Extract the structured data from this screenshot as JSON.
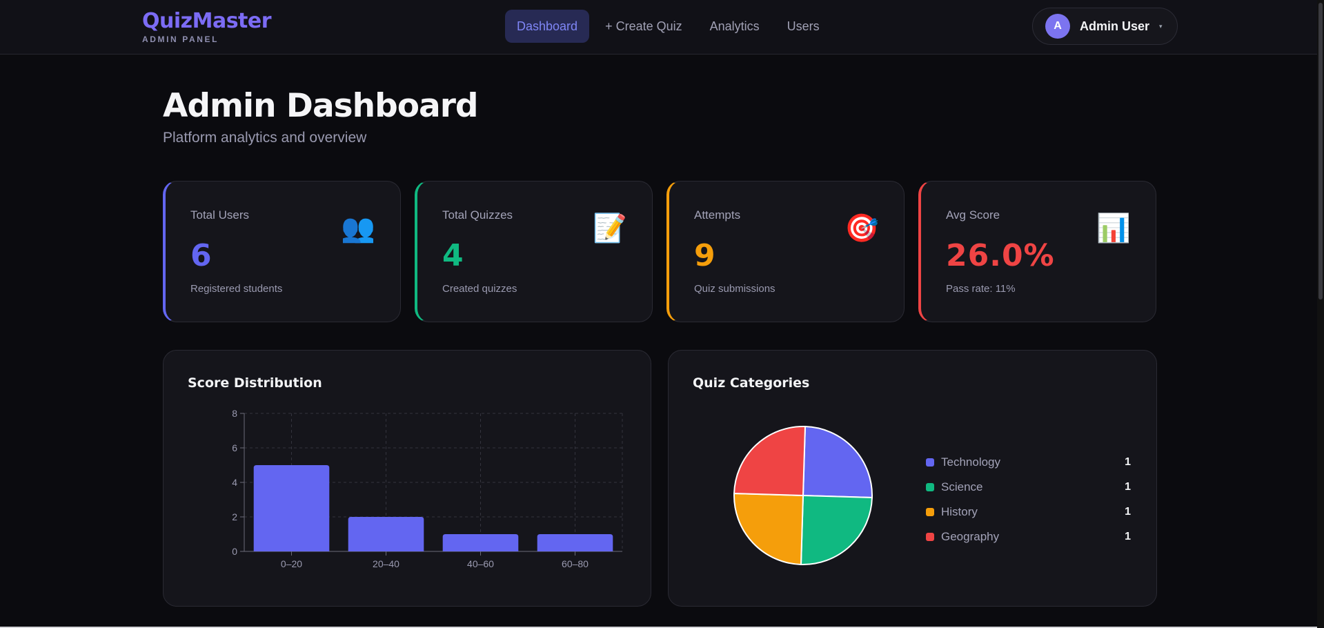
{
  "header": {
    "brand": "QuizMaster",
    "brand_sub": "ADMIN PANEL",
    "nav": [
      {
        "label": "Dashboard",
        "active": true
      },
      {
        "label": "+ Create Quiz",
        "active": false
      },
      {
        "label": "Analytics",
        "active": false
      },
      {
        "label": "Users",
        "active": false
      }
    ],
    "user": {
      "initial": "A",
      "name": "Admin User",
      "caret": "▾"
    }
  },
  "page": {
    "title": "Admin Dashboard",
    "subtitle": "Platform analytics and overview"
  },
  "stats": [
    {
      "label": "Total Users",
      "value": "6",
      "note": "Registered students",
      "icon": "users-icon",
      "glyph": "👥",
      "color": "#6366f1"
    },
    {
      "label": "Total Quizzes",
      "value": "4",
      "note": "Created quizzes",
      "icon": "memo-icon",
      "glyph": "📝",
      "color": "#10b981"
    },
    {
      "label": "Attempts",
      "value": "9",
      "note": "Quiz submissions",
      "icon": "target-icon",
      "glyph": "🎯",
      "color": "#f59e0b"
    },
    {
      "label": "Avg Score",
      "value": "26.0%",
      "note": "Pass rate: 11%",
      "icon": "bar-chart-icon",
      "glyph": "📊",
      "color": "#ef4444"
    }
  ],
  "charts": {
    "score_title": "Score Distribution",
    "categories_title": "Quiz Categories"
  },
  "chart_data": [
    {
      "type": "bar",
      "title": "Score Distribution",
      "categories": [
        "0–20",
        "20–40",
        "40–60",
        "60–80"
      ],
      "values": [
        5,
        2,
        1,
        1
      ],
      "ylim": [
        0,
        8
      ],
      "yticks": [
        0,
        2,
        4,
        6,
        8
      ],
      "grid": true,
      "color": "#6366f1"
    },
    {
      "type": "pie",
      "title": "Quiz Categories",
      "labels": [
        "Technology",
        "Science",
        "History",
        "Geography"
      ],
      "values": [
        1,
        1,
        1,
        1
      ],
      "colors": [
        "#6366f1",
        "#10b981",
        "#f59e0b",
        "#ef4444"
      ],
      "legend": "right"
    }
  ]
}
